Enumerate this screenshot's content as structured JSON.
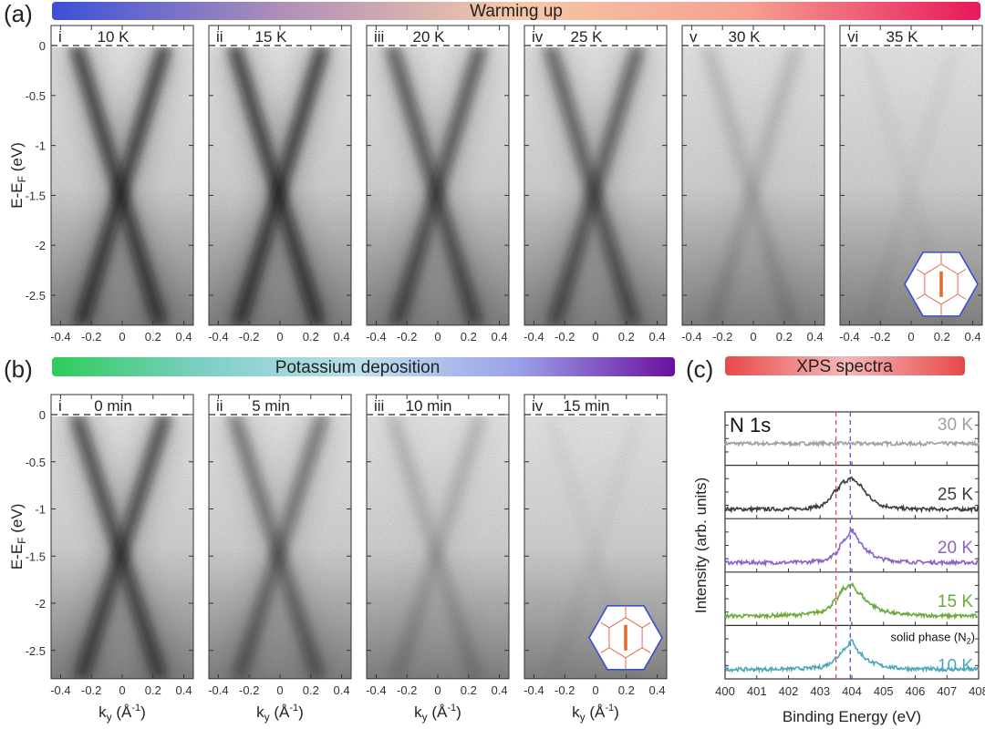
{
  "chart_data": [
    {
      "type": "heatmap",
      "panel_letter": "(a)",
      "banner": "Warming up",
      "banner_colors": [
        "#3a50d8",
        "#b090b8",
        "#f5c8a8",
        "#f5a090",
        "#e8185a"
      ],
      "ylabel": "E-E",
      "ylabel_sub": "F",
      "ylabel_unit": " (eV)",
      "ylim": [
        -2.8,
        0.1
      ],
      "xlim": [
        -0.46,
        0.46
      ],
      "yticks": [
        "0",
        "-0.5",
        "-1",
        "-1.5",
        "-2",
        "-2.5"
      ],
      "ytick_values": [
        0,
        -0.5,
        -1,
        -1.5,
        -2,
        -2.5
      ],
      "xticks": [
        "-0.4",
        "-0.2",
        "0",
        "0.2",
        "0.4"
      ],
      "xtick_values": [
        -0.4,
        -0.2,
        0,
        0.2,
        0.4
      ],
      "fermi_level_line": "dashed",
      "panels": [
        {
          "roman": "i",
          "condition": "10 K",
          "band_contrast": 1.0
        },
        {
          "roman": "ii",
          "condition": "15 K",
          "band_contrast": 1.0
        },
        {
          "roman": "iii",
          "condition": "20 K",
          "band_contrast": 0.8
        },
        {
          "roman": "iv",
          "condition": "25 K",
          "band_contrast": 0.75
        },
        {
          "roman": "v",
          "condition": "30 K",
          "band_contrast": 0.18
        },
        {
          "roman": "vi",
          "condition": "35 K",
          "band_contrast": 0.04,
          "bz_inset": true
        }
      ]
    },
    {
      "type": "heatmap",
      "panel_letter": "(b)",
      "banner": "Potassium deposition",
      "banner_colors": [
        "#2ecc5a",
        "#7fcfc8",
        "#bde0ec",
        "#9aa0e8",
        "#6a10a0"
      ],
      "ylabel": "E-E",
      "ylabel_sub": "F",
      "ylabel_unit": " (eV)",
      "xlabel": "k",
      "xlabel_sub": "y",
      "xlabel_unit": " (Å",
      "xlabel_sup": "-1",
      "xlabel_close": ")",
      "ylim": [
        -2.8,
        0.1
      ],
      "xlim": [
        -0.46,
        0.46
      ],
      "yticks": [
        "0",
        "-0.5",
        "-1",
        "-1.5",
        "-2",
        "-2.5"
      ],
      "ytick_values": [
        0,
        -0.5,
        -1,
        -1.5,
        -2,
        -2.5
      ],
      "xticks": [
        "-0.4",
        "-0.2",
        "0",
        "0.2",
        "0.4"
      ],
      "xtick_values": [
        -0.4,
        -0.2,
        0,
        0.2,
        0.4
      ],
      "panels": [
        {
          "roman": "i",
          "condition": "0 min",
          "band_contrast": 0.9
        },
        {
          "roman": "ii",
          "condition": "5 min",
          "band_contrast": 0.6
        },
        {
          "roman": "iii",
          "condition": "10 min",
          "band_contrast": 0.22
        },
        {
          "roman": "iv",
          "condition": "15 min",
          "band_contrast": 0.04,
          "bz_inset": true
        }
      ]
    },
    {
      "type": "line",
      "panel_letter": "(c)",
      "banner": "XPS spectra",
      "banner_colors": [
        "#e84848",
        "#f6b8b8",
        "#e84848"
      ],
      "title": "N 1s",
      "xlabel": "Binding Energy (eV)",
      "ylabel": "Intensity (arb. units)",
      "xlim": [
        400,
        408
      ],
      "xticks": [
        "400",
        "401",
        "402",
        "403",
        "404",
        "405",
        "406",
        "407",
        "408"
      ],
      "reference_lines": [
        {
          "x": 403.5,
          "color": "#e04040",
          "style": "dashed"
        },
        {
          "x": 403.95,
          "color": "#4050e0",
          "style": "dashed"
        }
      ],
      "annotation": "solid phase (N",
      "annotation_sub": "2",
      "annotation_close": ")",
      "x": [
        400,
        401,
        402,
        402.5,
        403,
        403.25,
        403.5,
        403.75,
        404,
        404.25,
        404.5,
        404.75,
        405,
        405.5,
        406,
        407,
        408
      ],
      "series": [
        {
          "name": "30 K",
          "color": "#a0a0a0",
          "values": [
            0.4,
            0.4,
            0.4,
            0.4,
            0.4,
            0.4,
            0.4,
            0.4,
            0.4,
            0.4,
            0.4,
            0.4,
            0.4,
            0.4,
            0.4,
            0.4,
            0.4
          ]
        },
        {
          "name": "25 K",
          "color": "#3a3d42",
          "values": [
            0.1,
            0.1,
            0.1,
            0.12,
            0.17,
            0.3,
            0.55,
            0.78,
            0.85,
            0.7,
            0.45,
            0.28,
            0.18,
            0.12,
            0.1,
            0.1,
            0.1
          ]
        },
        {
          "name": "20 K",
          "color": "#8a63c8",
          "values": [
            0.1,
            0.1,
            0.1,
            0.11,
            0.14,
            0.2,
            0.35,
            0.65,
            0.9,
            0.62,
            0.38,
            0.25,
            0.18,
            0.13,
            0.11,
            0.1,
            0.1
          ]
        },
        {
          "name": "15 K",
          "color": "#6aaa3a",
          "values": [
            0.1,
            0.1,
            0.12,
            0.14,
            0.2,
            0.3,
            0.5,
            0.78,
            0.85,
            0.65,
            0.45,
            0.32,
            0.22,
            0.15,
            0.12,
            0.1,
            0.1
          ]
        },
        {
          "name": "10 K",
          "color": "#4aa8b8",
          "values": [
            0.1,
            0.1,
            0.11,
            0.12,
            0.15,
            0.22,
            0.38,
            0.6,
            0.8,
            0.5,
            0.33,
            0.24,
            0.18,
            0.13,
            0.11,
            0.1,
            0.1
          ]
        }
      ]
    }
  ]
}
